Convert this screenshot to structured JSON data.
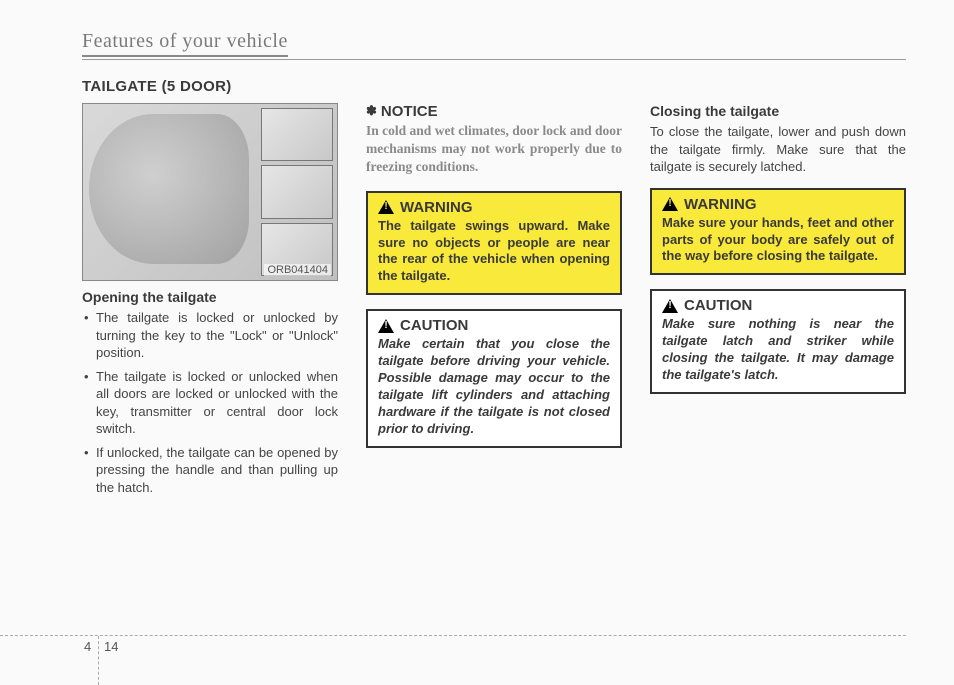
{
  "running_head": "Features of your vehicle",
  "section_title": "TAILGATE (5 DOOR)",
  "figure": {
    "code": "ORB041404"
  },
  "opening": {
    "heading": "Opening the tailgate",
    "bullets": [
      "The tailgate is locked or unlocked by turning the key to the \"Lock\" or \"Unlock\" position.",
      "The tailgate is locked or unlocked when all doors are locked or unlocked with the key, transmitter or central door lock switch.",
      "If unlocked, the tailgate can be opened by pressing the handle and than pulling up the hatch."
    ]
  },
  "notice": {
    "label": "NOTICE",
    "body": "In cold and wet climates, door lock and door mechanisms may not work properly due to freezing conditions."
  },
  "warning1": {
    "label": "WARNING",
    "body": "The tailgate swings upward. Make sure no objects or people are near the rear of the vehicle when opening the tailgate."
  },
  "caution1": {
    "label": "CAUTION",
    "body": "Make certain that you close the tailgate before driving your vehicle. Possible damage may occur to the tailgate lift cylinders and attaching hardware if the tailgate is not closed prior to driving."
  },
  "closing": {
    "heading": "Closing the tailgate",
    "body": "To close the tailgate, lower and push down the tailgate firmly. Make sure that the tailgate is securely latched."
  },
  "warning2": {
    "label": "WARNING",
    "body": "Make sure your hands, feet and other parts of your body are safely out of the way before closing the tailgate."
  },
  "caution2": {
    "label": "CAUTION",
    "body": "Make sure nothing is near the tailgate latch and striker while closing the tailgate. It may damage the tailgate's latch."
  },
  "page": {
    "section": "4",
    "number": "14"
  }
}
